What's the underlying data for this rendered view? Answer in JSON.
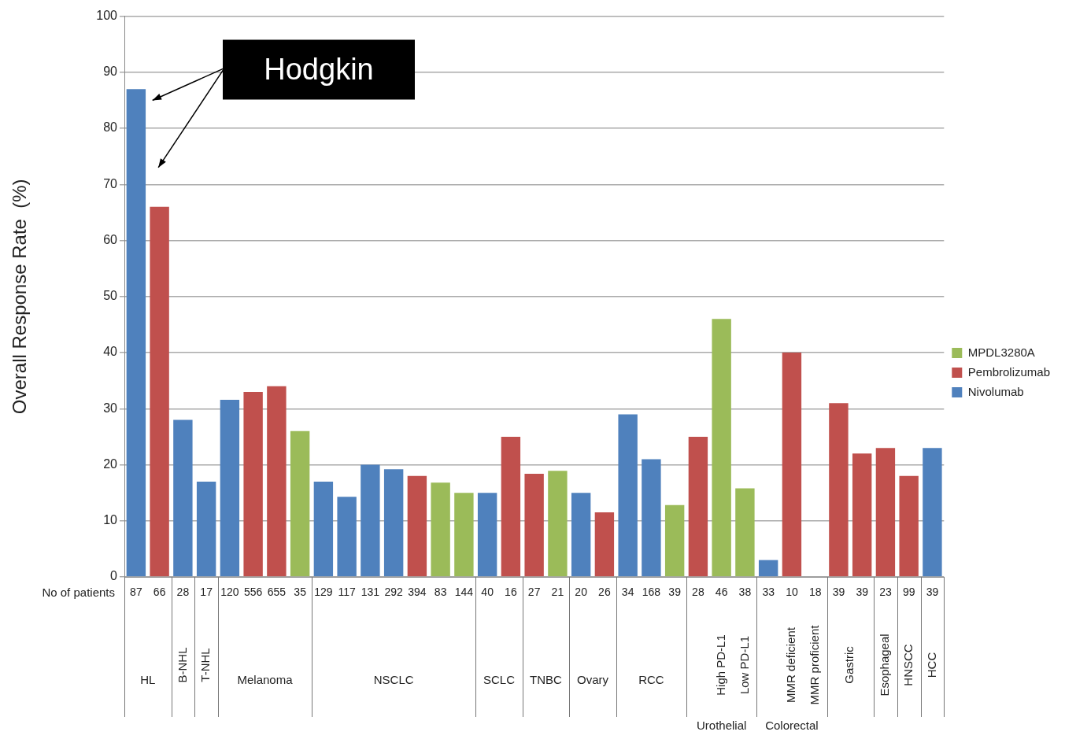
{
  "chart_data": {
    "type": "bar",
    "ylabel": "Overall Response Rate  (%)",
    "categories": [
      "87",
      "66",
      "28",
      "17",
      "120",
      "556",
      "655",
      "35",
      "129",
      "117",
      "131",
      "292",
      "394",
      "83",
      "144",
      "40",
      "16",
      "27",
      "21",
      "20",
      "26",
      "34",
      "168",
      "39",
      "28",
      "46",
      "38",
      "33",
      "10",
      "18",
      "39",
      "39",
      "23",
      "99",
      "39"
    ],
    "series": [
      {
        "name": "MPDL3280A",
        "color": "#9bbb59",
        "values": [
          null,
          null,
          null,
          null,
          null,
          null,
          null,
          26,
          null,
          null,
          null,
          null,
          null,
          16.8,
          15,
          null,
          null,
          null,
          18.9,
          null,
          null,
          null,
          null,
          12.8,
          null,
          46,
          15.8,
          null,
          null,
          null,
          null,
          null,
          null,
          null,
          null
        ]
      },
      {
        "name": "Pembrolizumab",
        "color": "#c0504d",
        "values": [
          null,
          66,
          null,
          null,
          null,
          33,
          34,
          null,
          null,
          null,
          null,
          null,
          18,
          null,
          null,
          null,
          25,
          18.4,
          null,
          null,
          11.5,
          null,
          null,
          null,
          25,
          null,
          null,
          null,
          40,
          0,
          31,
          22,
          23,
          18,
          null
        ]
      },
      {
        "name": "Nivolumab",
        "color": "#4f81bd",
        "values": [
          87,
          null,
          28,
          17,
          31.6,
          null,
          null,
          null,
          17,
          14.3,
          20,
          19.2,
          null,
          null,
          null,
          15,
          null,
          null,
          null,
          15,
          null,
          29,
          21,
          null,
          null,
          null,
          null,
          3,
          null,
          null,
          null,
          null,
          null,
          null,
          23
        ]
      }
    ],
    "ylim": [
      0,
      100
    ],
    "yticks": [
      0,
      10,
      20,
      30,
      40,
      50,
      60,
      70,
      80,
      90,
      100
    ],
    "grid": "y",
    "legend": "right",
    "annotations": [
      "Hodgkin",
      "No of patients",
      "HL",
      "B-NHL",
      "T-NHL",
      "Melanoma",
      "NSCLC",
      "SCLC",
      "TNBC",
      "Ovary",
      "RCC",
      "High PD-L1",
      "Low PD-L1",
      "MMR deficient",
      "MMR proficient",
      "Gastric",
      "Esophageal",
      "HNSCC",
      "HCC",
      "Urothelial",
      "Colorectal"
    ]
  }
}
